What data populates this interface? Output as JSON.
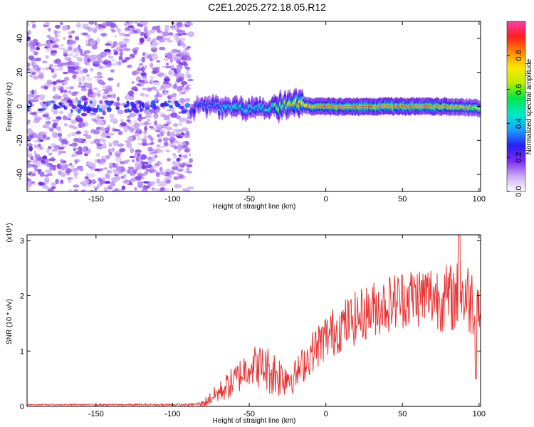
{
  "title": "C2E1.2025.272.18.05.R12",
  "colors": {
    "snr_line": "#e83232",
    "colormap": [
      "#ffffff",
      "#c9aaf5",
      "#7a2af0",
      "#2a1ef5",
      "#1e9bff",
      "#00e8d0",
      "#00e64a",
      "#b8f000",
      "#ffe600",
      "#ff8800",
      "#ff1e1e",
      "#ff3aa8"
    ]
  },
  "chart_data": [
    {
      "type": "heatmap",
      "title": "C2E1.2025.272.18.05.R12",
      "xlabel": "Height of straight line (km)",
      "ylabel": "Frequency (Hz)",
      "xlim": [
        -195,
        101
      ],
      "ylim": [
        -50,
        50
      ],
      "x_ticks": [
        -150,
        -100,
        -50,
        0,
        50,
        100
      ],
      "x_tick_labels": [
        "-150",
        "-100",
        "-50",
        "0",
        "50",
        "100"
      ],
      "y_ticks": [
        -40,
        -20,
        0,
        20,
        40
      ],
      "y_tick_labels": [
        "-40",
        "-20",
        "0",
        "20",
        "40"
      ],
      "noise_region_km": [
        -195,
        -88
      ],
      "signal_band": {
        "x_start_km": -88,
        "center_hz": [
          {
            "x": -88,
            "y": -2
          },
          {
            "x": -80,
            "y": 1
          },
          {
            "x": -70,
            "y": 0
          },
          {
            "x": -60,
            "y": -1
          },
          {
            "x": -50,
            "y": -2
          },
          {
            "x": -40,
            "y": -1
          },
          {
            "x": -30,
            "y": 0
          },
          {
            "x": -20,
            "y": 2
          },
          {
            "x": -10,
            "y": 0
          },
          {
            "x": 0,
            "y": 0
          },
          {
            "x": 25,
            "y": 0
          },
          {
            "x": 50,
            "y": 0
          },
          {
            "x": 75,
            "y": 0
          },
          {
            "x": 100,
            "y": -1
          }
        ],
        "peak_amplitude": [
          {
            "x": -88,
            "y": 0.3
          },
          {
            "x": -60,
            "y": 0.45
          },
          {
            "x": -40,
            "y": 0.45
          },
          {
            "x": -20,
            "y": 0.8
          },
          {
            "x": 0,
            "y": 0.95
          },
          {
            "x": 50,
            "y": 1.0
          },
          {
            "x": 80,
            "y": 0.95
          },
          {
            "x": 100,
            "y": 0.75
          }
        ]
      },
      "colorbar": {
        "label": "Normalized spectral amplitude",
        "range": [
          0,
          1
        ],
        "ticks": [
          0.0,
          0.2,
          0.4,
          0.6,
          0.8
        ],
        "tick_labels": [
          "0.0",
          "0.2",
          "0.4",
          "0.6",
          "0.8"
        ]
      }
    },
    {
      "type": "line",
      "xlabel": "Height of straight line (km)",
      "ylabel": "SNR (10 * v/v)",
      "y_multiplier_label": "(x10⁴)",
      "xlim": [
        -195,
        101
      ],
      "ylim": [
        0,
        3.1
      ],
      "x_ticks": [
        -150,
        -100,
        -50,
        0,
        50,
        100
      ],
      "x_tick_labels": [
        "-150",
        "-100",
        "-50",
        "0",
        "50",
        "100"
      ],
      "y_ticks": [
        0,
        1,
        2,
        3
      ],
      "y_tick_labels": [
        "0",
        "1",
        "2",
        "3"
      ],
      "series": [
        {
          "name": "SNR",
          "envelope": [
            {
              "x": -195,
              "y": 0.03
            },
            {
              "x": -90,
              "y": 0.03
            },
            {
              "x": -80,
              "y": 0.05
            },
            {
              "x": -70,
              "y": 0.25
            },
            {
              "x": -60,
              "y": 0.45
            },
            {
              "x": -50,
              "y": 0.75
            },
            {
              "x": -40,
              "y": 0.7
            },
            {
              "x": -30,
              "y": 0.55
            },
            {
              "x": -20,
              "y": 0.55
            },
            {
              "x": -10,
              "y": 0.95
            },
            {
              "x": 0,
              "y": 1.25
            },
            {
              "x": 10,
              "y": 1.45
            },
            {
              "x": 20,
              "y": 1.6
            },
            {
              "x": 30,
              "y": 1.75
            },
            {
              "x": 40,
              "y": 1.85
            },
            {
              "x": 50,
              "y": 1.95
            },
            {
              "x": 60,
              "y": 2.0
            },
            {
              "x": 70,
              "y": 2.0
            },
            {
              "x": 80,
              "y": 1.95
            },
            {
              "x": 90,
              "y": 2.0
            },
            {
              "x": 100,
              "y": 1.85
            }
          ],
          "noise_amplitude": [
            {
              "x": -195,
              "y": 0.01
            },
            {
              "x": -85,
              "y": 0.02
            },
            {
              "x": -60,
              "y": 0.3
            },
            {
              "x": -35,
              "y": 0.45
            },
            {
              "x": -20,
              "y": 0.3
            },
            {
              "x": 0,
              "y": 0.45
            },
            {
              "x": 50,
              "y": 0.55
            },
            {
              "x": 100,
              "y": 0.7
            }
          ],
          "peak": {
            "x": 87,
            "y": 3.1
          },
          "min_late": {
            "x": 98,
            "y": 0.5
          }
        }
      ]
    }
  ]
}
